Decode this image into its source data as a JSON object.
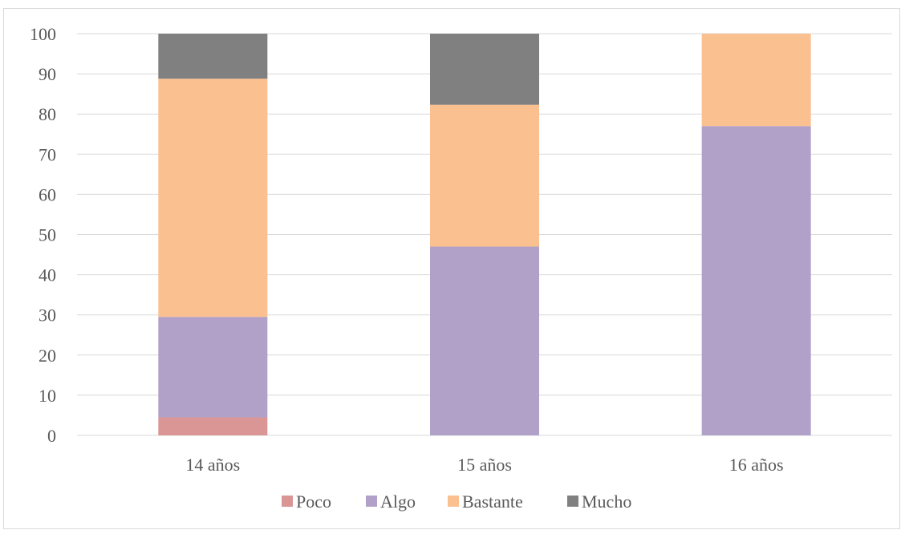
{
  "chart_data": {
    "type": "bar",
    "stacked": true,
    "title": "",
    "xlabel": "",
    "ylabel": "",
    "categories": [
      "14 años",
      "15 años",
      "16 años"
    ],
    "series": [
      {
        "name": "Poco",
        "values": [
          4.5,
          0,
          0
        ],
        "color": "#d99694"
      },
      {
        "name": "Algo",
        "values": [
          25,
          47,
          77
        ],
        "color": "#b1a0c7"
      },
      {
        "name": "Bastante",
        "values": [
          59.3,
          35.3,
          23
        ],
        "color": "#fac090"
      },
      {
        "name": "Mucho",
        "values": [
          11.2,
          17.7,
          0
        ],
        "color": "#808080"
      }
    ],
    "ylim": [
      0,
      100
    ],
    "yticks": [
      "0",
      "10",
      "20",
      "30",
      "40",
      "50",
      "60",
      "70",
      "80",
      "90",
      "100"
    ],
    "grid": true,
    "legend": "bottom",
    "colors": {
      "grid": "#d9d9d9",
      "text": "#595959",
      "frame": "#d9d9d9"
    }
  }
}
